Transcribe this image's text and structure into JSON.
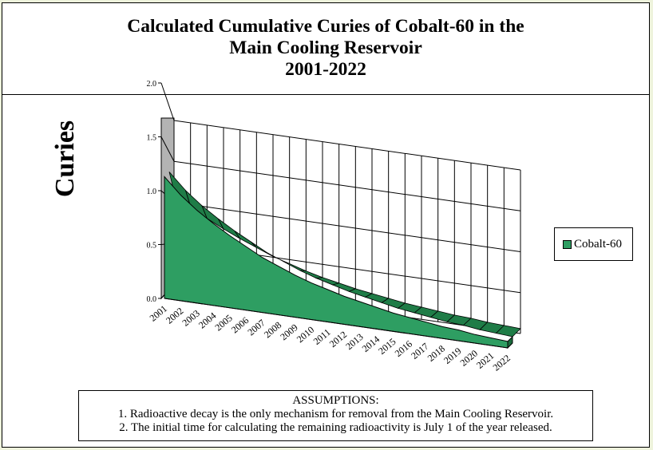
{
  "title": {
    "line1": "Calculated Cumulative Curies of  Cobalt-60 in the",
    "line2": "Main Cooling Reservoir",
    "line3": "2001-2022"
  },
  "legend": {
    "label": "Cobalt-60",
    "color": "#2e9e62"
  },
  "assumptions": {
    "heading": "ASSUMPTIONS:",
    "item1": "1. Radioactive decay is the only mechanism for removal from the Main Cooling Reservoir.",
    "item2": "2. The initial time for calculating the remaining radioactivity is July 1 of the year released."
  },
  "chart_data": {
    "type": "area",
    "title": "Calculated Cumulative Curies of  Cobalt-60 in the Main Cooling Reservoir 2001-2022",
    "xlabel": "",
    "ylabel": "Curies",
    "x": [
      "2001",
      "2002",
      "2003",
      "2004",
      "2005",
      "2006",
      "2007",
      "2008",
      "2009",
      "2010",
      "2011",
      "2012",
      "2013",
      "2014",
      "2015",
      "2016",
      "2017",
      "2018",
      "2019",
      "2020",
      "2021",
      "2022"
    ],
    "yticks": [
      "0.0",
      "0.5",
      "1.0",
      "1.5",
      "2.0"
    ],
    "ylim": [
      0,
      2.0
    ],
    "grid": true,
    "legend_position": "right",
    "series": [
      {
        "name": "Cobalt-60",
        "color": "#2e9e62",
        "values": [
          1.13,
          0.98,
          0.86,
          0.76,
          0.67,
          0.59,
          0.51,
          0.45,
          0.39,
          0.34,
          0.3,
          0.26,
          0.23,
          0.2,
          0.17,
          0.15,
          0.13,
          0.11,
          0.1,
          0.08,
          0.07,
          0.06
        ]
      }
    ]
  }
}
